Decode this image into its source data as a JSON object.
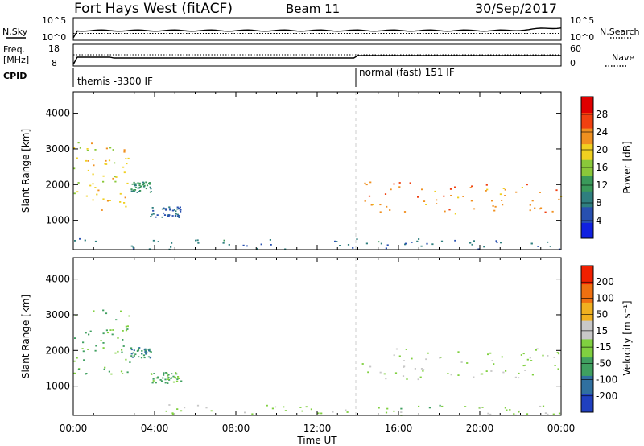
{
  "header": {
    "station": "Fort Hays West (fitACF)",
    "beam": "Beam 11",
    "date": "30/Sep/2017"
  },
  "noise_panel": {
    "left_label": "N.Sky",
    "right_label": "N.Search",
    "left_ticks": [
      "10^5",
      "10^0"
    ],
    "right_ticks": [
      "10^5",
      "10^0"
    ]
  },
  "freq_panel": {
    "left_label_line1": "Freq.",
    "left_label_line2": "[MHz]",
    "right_label": "Nave",
    "left_ticks": [
      "18",
      "8"
    ],
    "right_ticks": [
      "60",
      "0"
    ]
  },
  "cpid_panel": {
    "label": "CPID",
    "modes": [
      {
        "name": "themis -3300 IF",
        "start_hour": 0.0
      },
      {
        "name": "normal (fast) 151 IF",
        "start_hour": 14.0
      }
    ]
  },
  "chart_data": [
    {
      "type": "heatmap",
      "parameter": "Power",
      "ylabel": "Slant Range [km]",
      "xlabel": "Time UT",
      "xlim_hours": [
        0,
        24
      ],
      "ylim": [
        180,
        4600
      ],
      "yticks": [
        "1000",
        "2000",
        "3000",
        "4000"
      ],
      "colorbar": {
        "label": "Power [dB]",
        "ticks": [
          "28",
          "24",
          "20",
          "16",
          "12",
          "8",
          "4"
        ],
        "range": [
          0,
          30
        ],
        "colors": [
          "#1020e0",
          "#2850b0",
          "#2f7f7f",
          "#3a9a5a",
          "#8ac83a",
          "#f0d020",
          "#f09020",
          "#f04010",
          "#e00000"
        ]
      },
      "features": [
        {
          "hours": [
            0.0,
            2.8
          ],
          "range_km": [
            1300,
            3200
          ],
          "description_level_db": 18
        },
        {
          "hours": [
            2.8,
            3.8
          ],
          "range_km": [
            1800,
            2100
          ],
          "description_level_db": 10
        },
        {
          "hours": [
            3.7,
            5.3
          ],
          "range_km": [
            1100,
            1400
          ],
          "description_level_db": 6
        },
        {
          "hours": [
            0.0,
            24.0
          ],
          "range_km": [
            200,
            500
          ],
          "description_level_db": 8
        },
        {
          "hours": [
            14.2,
            24.0
          ],
          "range_km": [
            1200,
            2100
          ],
          "description_level_db": 22
        }
      ]
    },
    {
      "type": "heatmap",
      "parameter": "Velocity",
      "ylabel": "Slant Range [km]",
      "xlabel": "Time UT",
      "xlim_hours": [
        0,
        24
      ],
      "ylim": [
        180,
        4600
      ],
      "yticks": [
        "1000",
        "2000",
        "3000",
        "4000"
      ],
      "xticks": [
        "00:00",
        "04:00",
        "08:00",
        "12:00",
        "16:00",
        "20:00",
        "00:00"
      ],
      "colorbar": {
        "label": "Velocity [m s⁻¹]",
        "ticks": [
          "200",
          "100",
          "50",
          "15",
          "-15",
          "-50",
          "-100",
          "-200"
        ],
        "range": [
          -250,
          250
        ],
        "colors": [
          "#2040c0",
          "#3070a0",
          "#40a060",
          "#80d040",
          "#c8c8c8",
          "#f0b020",
          "#f07010",
          "#f02000"
        ]
      },
      "features": [
        {
          "hours": [
            0.0,
            2.8
          ],
          "range_km": [
            1300,
            3200
          ],
          "velocity": -60
        },
        {
          "hours": [
            2.8,
            3.8
          ],
          "range_km": [
            1800,
            2100
          ],
          "velocity": -120
        },
        {
          "hours": [
            3.7,
            5.3
          ],
          "range_km": [
            1100,
            1400
          ],
          "velocity": -70
        },
        {
          "hours": [
            4.5,
            24.0
          ],
          "range_km": [
            200,
            500
          ],
          "velocity": -20
        },
        {
          "hours": [
            14.2,
            24.0
          ],
          "range_km": [
            1200,
            2100
          ],
          "velocity": 0
        }
      ]
    }
  ]
}
